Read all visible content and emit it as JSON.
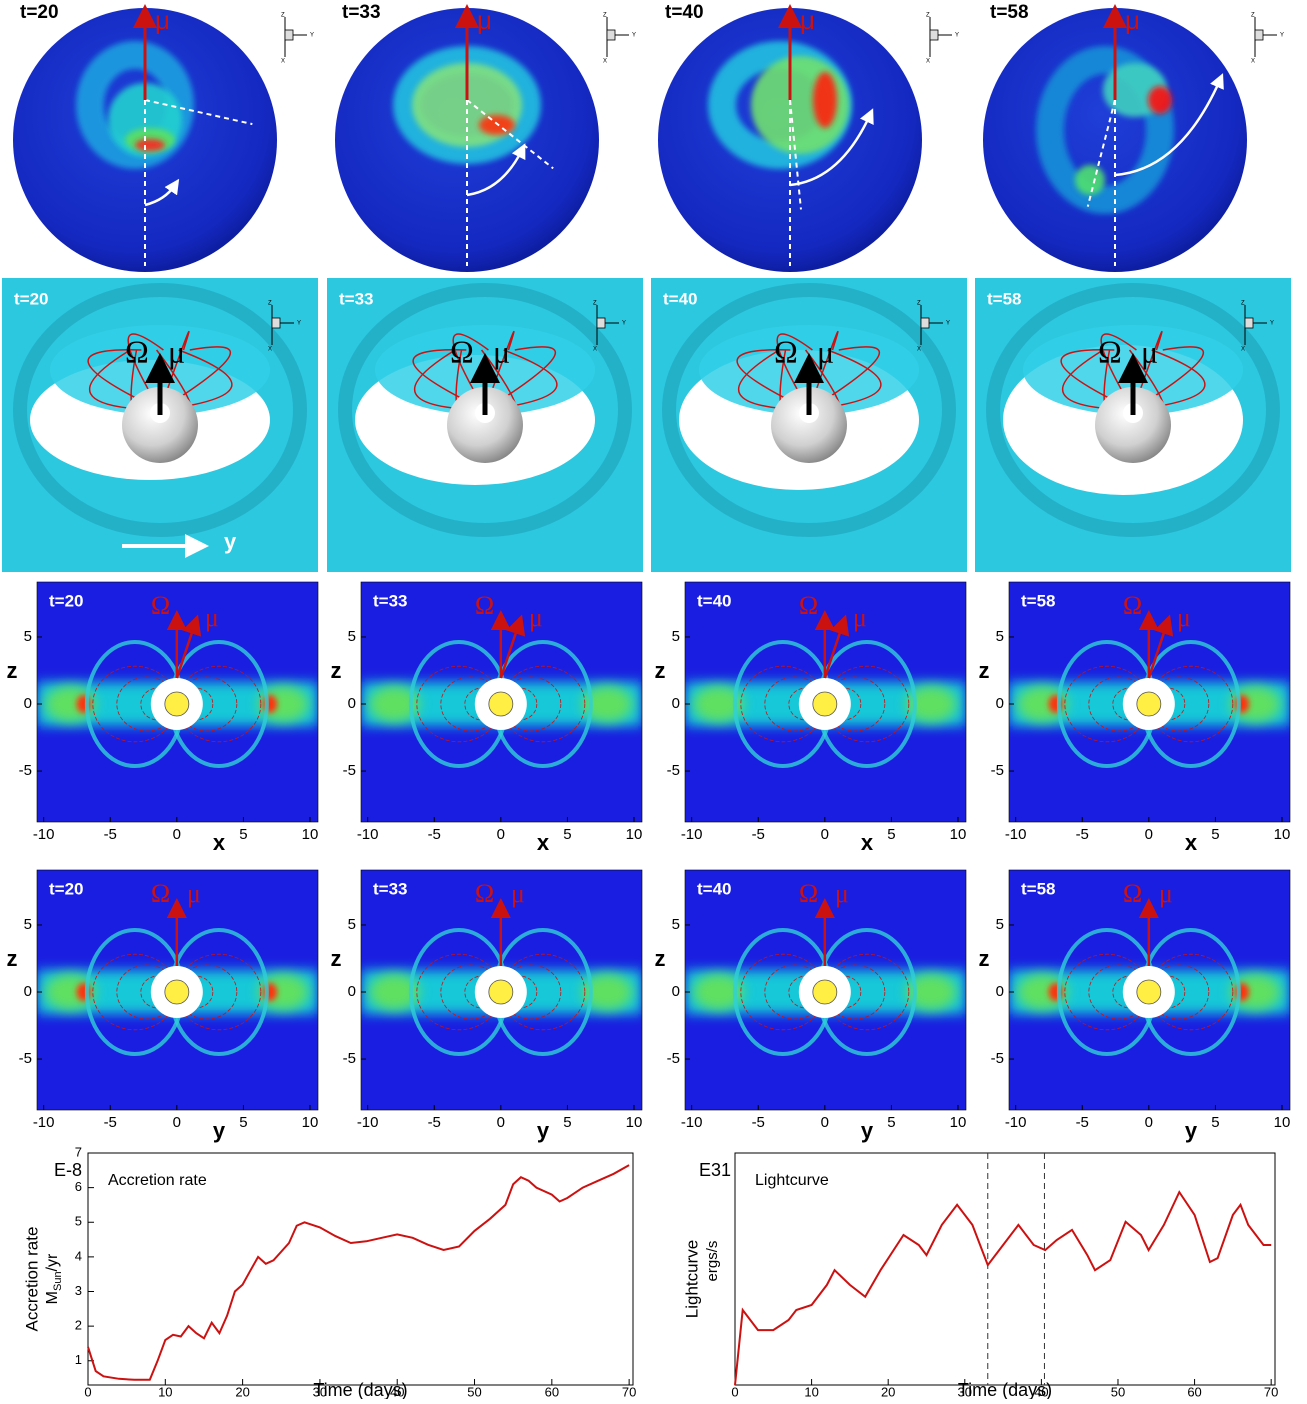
{
  "panels": {
    "times": [
      "t=20",
      "t=33",
      "t=40",
      "t=58"
    ],
    "mu": "μ",
    "omega": "Ω",
    "y_arrow": "y",
    "triad": [
      "Z",
      "Y",
      "X"
    ]
  },
  "slices": {
    "xlim": [
      -10.5,
      10.6
    ],
    "zlim": [
      -8.8,
      9.1
    ],
    "xticks": [
      -10,
      -5,
      0,
      5,
      10
    ],
    "zticks": [
      5,
      0,
      -5
    ],
    "row3_xlabel": "x",
    "row4_xlabel": "y",
    "zlabel": "z"
  },
  "chart_data": [
    {
      "type": "line",
      "title": "Accretion rate",
      "multiplier": "E-8",
      "ylabel": "Accretion rate",
      "ylabel_unit": {
        "base": "M",
        "sub": "Sun",
        "rest": "/yr"
      },
      "xlabel": "Time (days)",
      "color": "#cc1111",
      "x": [
        0,
        1,
        2,
        4,
        6,
        8,
        9,
        10,
        11,
        12,
        13,
        14,
        15,
        16,
        17,
        18,
        19,
        20,
        21,
        22,
        23,
        24,
        26,
        27,
        28,
        30,
        32,
        34,
        36,
        38,
        40,
        42,
        44,
        46,
        48,
        50,
        52,
        54,
        55,
        56,
        57,
        58,
        60,
        61,
        62,
        64,
        66,
        68,
        70
      ],
      "values": [
        1.4,
        0.7,
        0.55,
        0.48,
        0.45,
        0.45,
        1.0,
        1.6,
        1.75,
        1.7,
        2.0,
        1.8,
        1.65,
        2.1,
        1.8,
        2.3,
        3.0,
        3.2,
        3.6,
        4.0,
        3.8,
        3.9,
        4.4,
        4.9,
        5.0,
        4.85,
        4.6,
        4.4,
        4.45,
        4.55,
        4.65,
        4.55,
        4.35,
        4.2,
        4.3,
        4.75,
        5.1,
        5.5,
        6.1,
        6.3,
        6.2,
        6.0,
        5.8,
        5.6,
        5.7,
        6.0,
        6.2,
        6.4,
        6.65
      ],
      "xlim": [
        0,
        70.5
      ],
      "ylim": [
        0.3,
        7
      ],
      "xticks": [
        0,
        10,
        20,
        30,
        40,
        50,
        60,
        70
      ],
      "yticks": [
        1,
        2,
        3,
        4,
        5,
        6,
        7
      ]
    },
    {
      "type": "line",
      "title": "Lightcurve",
      "multiplier": "E31",
      "ylabel": "Lightcurve",
      "ylabel_unit": "ergs/s",
      "xlabel": "Time (days)",
      "color": "#cc1111",
      "x": [
        0,
        1,
        3,
        5,
        7,
        8,
        10,
        12,
        13,
        15,
        17,
        19,
        22,
        24,
        25,
        27,
        29,
        31,
        33,
        35,
        37,
        39,
        40.5,
        42,
        44,
        46,
        47,
        49,
        51,
        53,
        54,
        56,
        58,
        60,
        62,
        63,
        65,
        66,
        67,
        69,
        70
      ],
      "values": [
        0,
        1.94,
        1.42,
        1.42,
        1.68,
        1.94,
        2.07,
        2.59,
        2.97,
        2.59,
        2.28,
        2.97,
        3.88,
        3.62,
        3.36,
        4.14,
        4.66,
        4.14,
        3.1,
        3.62,
        4.14,
        3.62,
        3.49,
        3.75,
        4.01,
        3.36,
        2.97,
        3.23,
        4.22,
        3.88,
        3.49,
        4.14,
        4.99,
        4.4,
        3.18,
        3.28,
        4.4,
        4.66,
        4.14,
        3.62,
        3.62
      ],
      "xlim": [
        0,
        70.5
      ],
      "ylim": [
        0,
        6
      ],
      "xticks": [
        0,
        10,
        20,
        30,
        40,
        50,
        60,
        70
      ],
      "vlines": [
        33,
        40.4
      ]
    }
  ]
}
